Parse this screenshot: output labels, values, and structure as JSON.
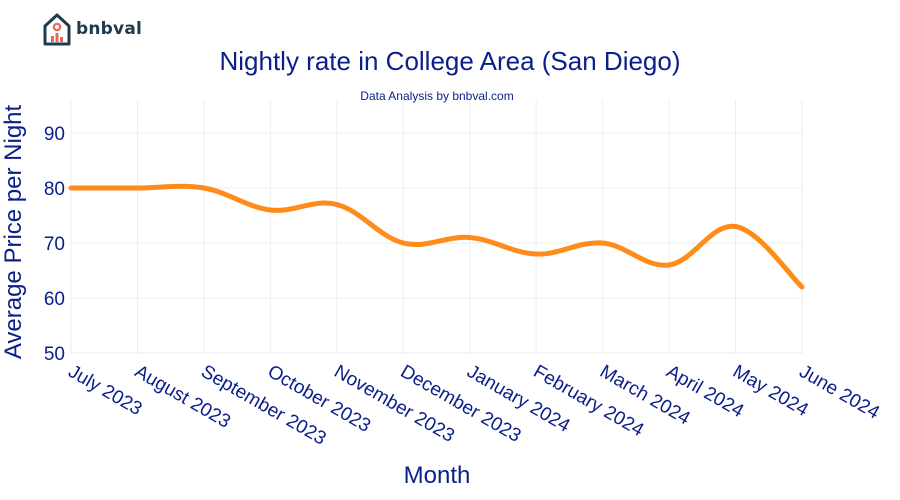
{
  "brand": {
    "name": "bnbval",
    "accent": "#e8675a",
    "dark": "#1f3b4d"
  },
  "chart_data": {
    "type": "line",
    "title": "Nightly rate in College Area (San Diego)",
    "subtitle": "Data Analysis by bnbval.com",
    "xlabel": "Month",
    "ylabel": "Average Price per Night",
    "categories": [
      "July 2023",
      "August 2023",
      "September 2023",
      "October 2023",
      "November 2023",
      "December 2023",
      "January 2024",
      "February 2024",
      "March 2024",
      "April 2024",
      "May 2024",
      "June 2024"
    ],
    "series": [
      {
        "values": [
          80,
          80,
          80,
          76,
          77,
          70,
          71,
          68,
          70,
          66,
          73,
          62
        ],
        "color": "#ff8c1a"
      }
    ],
    "ylim": [
      50,
      96
    ],
    "yticks": [
      50,
      60,
      70,
      80,
      90
    ],
    "grid": true,
    "legend": "none"
  }
}
